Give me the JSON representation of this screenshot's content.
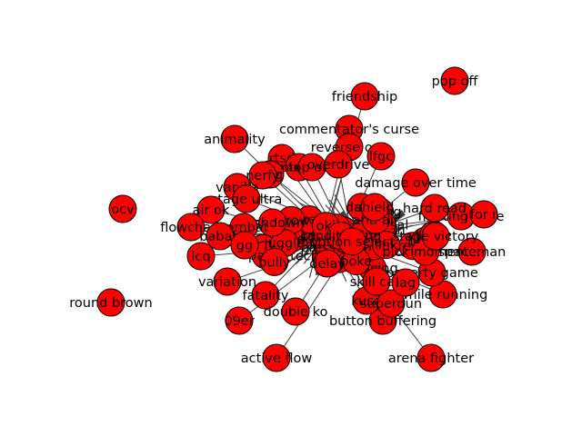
{
  "graph": {
    "node_color": "#ff0000",
    "edge_color": "#404040",
    "node_border_color": "#000000",
    "label_color": "#000000",
    "outer_nodes": [
      "pop off",
      "friendship",
      "commentator's curse",
      "animality",
      "reverse ocv",
      "lfgc",
      "rtsd",
      "mix up",
      "top out",
      "overdrive",
      "mtg",
      "nerfy",
      "damage over time",
      "vanilla",
      "stage ultra",
      "ocv",
      "air ok",
      "flowchart",
      "combat",
      "babab",
      "gg",
      "lcq",
      "variation",
      "fatality",
      "09er",
      "double ko",
      "button buffering",
      "round brown",
      "active flow",
      "arena fighter",
      "while running",
      "poverty game",
      "kuso",
      "superdun",
      "skill cap",
      "lag",
      "spaceman",
      "pick moment",
      "delay",
      "shield",
      "stage victory",
      "fighting style",
      "hard read",
      "for r"
    ],
    "core_nodes": [
      "frame trap",
      "footsies",
      "mixup",
      "neutral",
      "cross up",
      "punish",
      "tech chase",
      "okizeme",
      "read",
      "bait",
      "zoning",
      "spacing",
      "hitbox",
      "hurtbox",
      "cancel",
      "combo",
      "whiff",
      "meter",
      "reversal",
      "wakeup",
      "throw",
      "block",
      "parry",
      "dash",
      "jump",
      "counter",
      "setup",
      "pressure",
      "oki",
      "link",
      "juggle",
      "anti air",
      "poke",
      "rushdown",
      "turtle",
      "bully",
      "conditioning",
      "option select"
    ]
  }
}
